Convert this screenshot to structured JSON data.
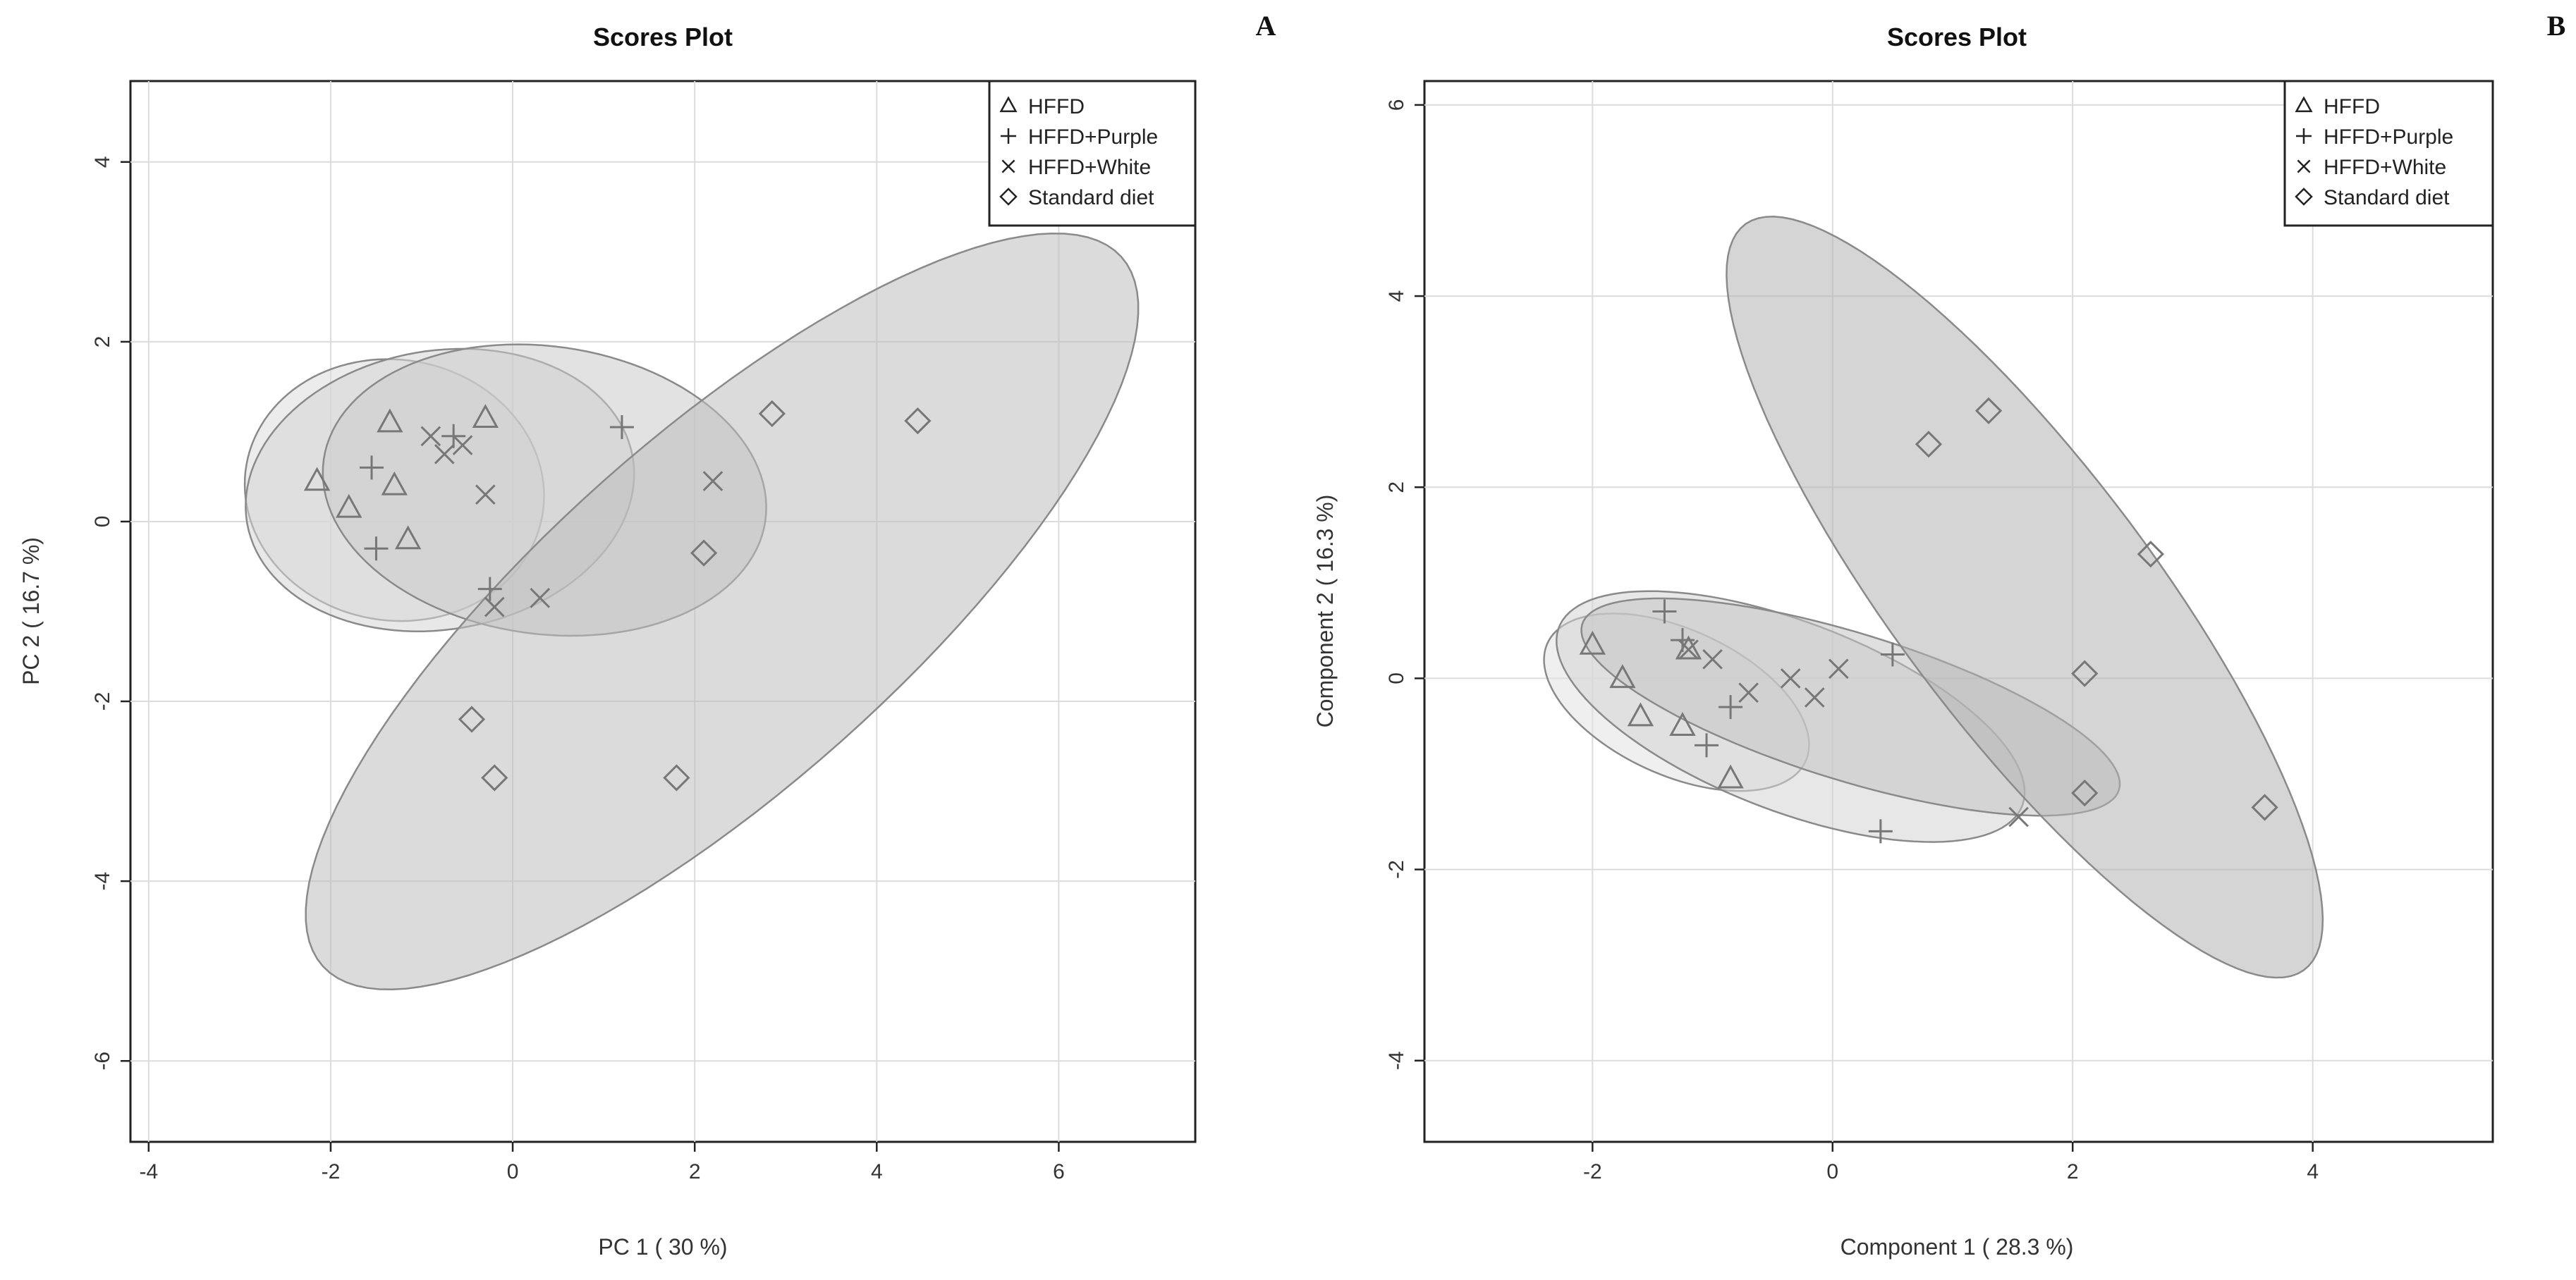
{
  "chart_data": [
    {
      "panel": "A",
      "type": "scatter",
      "title": "Scores Plot",
      "xlabel": "PC 1 ( 30 %)",
      "ylabel": "PC 2 ( 16.7 %)",
      "xlim": [
        -4.2,
        7.5
      ],
      "ylim": [
        -6.9,
        4.9
      ],
      "xticks": [
        -4,
        -2,
        0,
        2,
        4,
        6
      ],
      "yticks": [
        -6,
        -4,
        -2,
        0,
        2,
        4
      ],
      "legend": {
        "position": "top-right",
        "entries": [
          {
            "label": "HFFD",
            "marker": "triangle"
          },
          {
            "label": "HFFD+Purple",
            "marker": "plus"
          },
          {
            "label": "HFFD+White",
            "marker": "cross"
          },
          {
            "label": "Standard diet",
            "marker": "diamond"
          }
        ]
      },
      "series": [
        {
          "name": "HFFD",
          "marker": "triangle",
          "points": [
            [
              -2.15,
              0.45
            ],
            [
              -1.8,
              0.15
            ],
            [
              -1.35,
              1.1
            ],
            [
              -1.3,
              0.4
            ],
            [
              -1.15,
              -0.2
            ],
            [
              -0.3,
              1.15
            ]
          ]
        },
        {
          "name": "HFFD+Purple",
          "marker": "plus",
          "points": [
            [
              -1.55,
              0.6
            ],
            [
              -1.5,
              -0.3
            ],
            [
              -0.65,
              0.95
            ],
            [
              -0.25,
              -0.75
            ],
            [
              1.2,
              1.05
            ]
          ]
        },
        {
          "name": "HFFD+White",
          "marker": "cross",
          "points": [
            [
              -0.9,
              0.95
            ],
            [
              -0.75,
              0.75
            ],
            [
              -0.55,
              0.85
            ],
            [
              -0.3,
              0.3
            ],
            [
              -0.2,
              -0.95
            ],
            [
              0.3,
              -0.85
            ],
            [
              2.2,
              0.45
            ]
          ]
        },
        {
          "name": "Standard diet",
          "marker": "diamond",
          "points": [
            [
              -0.45,
              -2.2
            ],
            [
              -0.2,
              -2.85
            ],
            [
              1.8,
              -2.85
            ],
            [
              2.1,
              -0.35
            ],
            [
              2.85,
              1.2
            ],
            [
              4.45,
              1.12
            ]
          ]
        }
      ],
      "ellipses": [
        {
          "group": "HFFD",
          "center": [
            -1.3,
            0.35
          ],
          "semi_axes": [
            1.45,
            1.65
          ],
          "angle_deg": 80,
          "shade": "#dcdcdc"
        },
        {
          "group": "HFFD+Purple",
          "center": [
            -0.8,
            0.35
          ],
          "semi_axes": [
            2.15,
            1.55
          ],
          "angle_deg": 10,
          "shade": "#d6d6d6"
        },
        {
          "group": "HFFD+White",
          "center": [
            0.35,
            0.35
          ],
          "semi_axes": [
            2.45,
            1.6
          ],
          "angle_deg": -8,
          "shade": "#cacaca"
        },
        {
          "group": "Standard diet",
          "center": [
            2.3,
            -1.0
          ],
          "semi_axes": [
            5.9,
            1.95
          ],
          "angle_deg": 42,
          "shade": "#bdbdbd"
        }
      ]
    },
    {
      "panel": "B",
      "type": "scatter",
      "title": "Scores Plot",
      "xlabel": "Component 1 ( 28.3 %)",
      "ylabel": "Component 2 ( 16.3 %)",
      "xlim": [
        -3.4,
        5.5
      ],
      "ylim": [
        -4.85,
        6.25
      ],
      "xticks": [
        -2,
        0,
        2,
        4
      ],
      "yticks": [
        -4,
        -2,
        0,
        2,
        4,
        6
      ],
      "legend": {
        "position": "top-right",
        "entries": [
          {
            "label": "HFFD",
            "marker": "triangle"
          },
          {
            "label": "HFFD+Purple",
            "marker": "plus"
          },
          {
            "label": "HFFD+White",
            "marker": "cross"
          },
          {
            "label": "Standard diet",
            "marker": "diamond"
          }
        ]
      },
      "series": [
        {
          "name": "HFFD",
          "marker": "triangle",
          "points": [
            [
              -2.0,
              0.35
            ],
            [
              -1.75,
              0.0
            ],
            [
              -1.6,
              -0.4
            ],
            [
              -1.2,
              0.3
            ],
            [
              -1.25,
              -0.5
            ],
            [
              -0.85,
              -1.05
            ]
          ]
        },
        {
          "name": "HFFD+Purple",
          "marker": "plus",
          "points": [
            [
              -1.4,
              0.7
            ],
            [
              -1.25,
              0.4
            ],
            [
              -1.05,
              -0.7
            ],
            [
              -0.85,
              -0.3
            ],
            [
              0.5,
              0.25
            ],
            [
              0.4,
              -1.6
            ]
          ]
        },
        {
          "name": "HFFD+White",
          "marker": "cross",
          "points": [
            [
              -1.2,
              0.3
            ],
            [
              -1.0,
              0.2
            ],
            [
              -0.7,
              -0.15
            ],
            [
              -0.35,
              0.0
            ],
            [
              -0.15,
              -0.2
            ],
            [
              0.05,
              0.1
            ],
            [
              1.55,
              -1.45
            ]
          ]
        },
        {
          "name": "Standard diet",
          "marker": "diamond",
          "points": [
            [
              0.8,
              2.45
            ],
            [
              1.3,
              2.8
            ],
            [
              2.1,
              0.05
            ],
            [
              2.1,
              -1.2
            ],
            [
              2.65,
              1.3
            ],
            [
              3.6,
              -1.35
            ]
          ]
        }
      ],
      "ellipses": [
        {
          "group": "HFFD",
          "center": [
            -1.3,
            -0.25
          ],
          "semi_axes": [
            1.25,
            0.72
          ],
          "angle_deg": -35,
          "shade": "#e2e2e2"
        },
        {
          "group": "HFFD+Purple",
          "center": [
            -0.35,
            -0.4
          ],
          "semi_axes": [
            2.15,
            0.95
          ],
          "angle_deg": -28,
          "shade": "#d4d4d4"
        },
        {
          "group": "HFFD+White",
          "center": [
            0.15,
            -0.3
          ],
          "semi_axes": [
            2.4,
            0.75
          ],
          "angle_deg": -22,
          "shade": "#c4c4c4"
        },
        {
          "group": "Standard diet",
          "center": [
            1.6,
            0.85
          ],
          "semi_axes": [
            4.55,
            1.15
          ],
          "angle_deg": -60,
          "shade": "#b3b3b3"
        }
      ]
    }
  ]
}
